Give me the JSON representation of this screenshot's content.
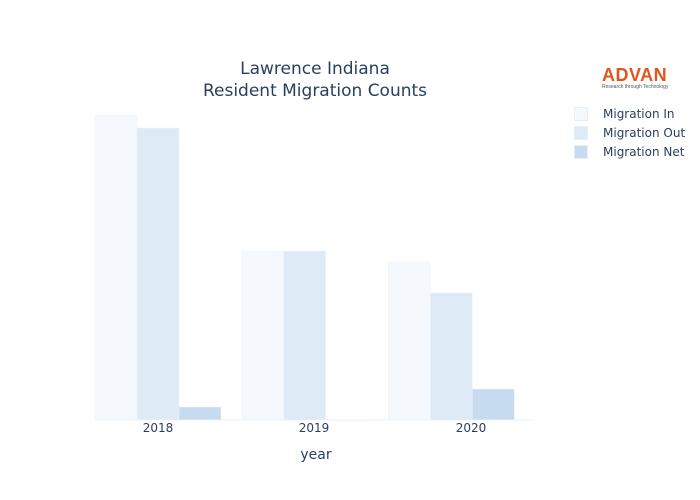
{
  "chart_data": {
    "type": "bar",
    "title_line1": "Lawrence Indiana",
    "title_line2": "Resident Migration Counts",
    "xlabel": "year",
    "ylabel": "",
    "categories": [
      "2018",
      "2019",
      "2020"
    ],
    "series": [
      {
        "name": "Migration In",
        "color": "#f5f9fd",
        "values": [
          305,
          169,
          158
        ]
      },
      {
        "name": "Migration Out",
        "color": "#deebf7",
        "values": [
          292,
          169,
          127
        ]
      },
      {
        "name": "Migration Net",
        "color": "#c6dbef",
        "values": [
          13,
          0,
          31
        ]
      }
    ],
    "ylim": [
      0,
      330
    ],
    "grid": false,
    "legend_position": "top-right"
  },
  "logo": {
    "text": "ADVAN",
    "tagline": "Research through Technology"
  }
}
